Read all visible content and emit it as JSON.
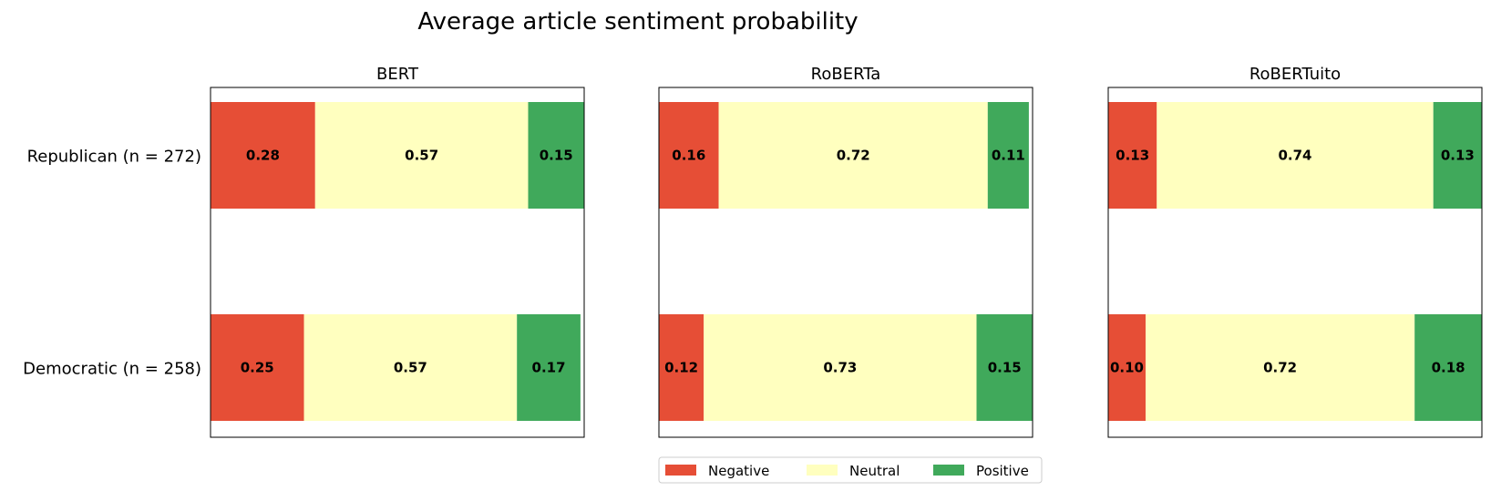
{
  "chart_data": {
    "type": "bar",
    "orientation": "horizontal-stacked",
    "title": "Average article sentiment probability",
    "categories": [
      "Republican (n = 272)",
      "Democratic (n = 258)"
    ],
    "xlim": [
      0,
      1
    ],
    "grid": false,
    "legend": {
      "placement": "bottom-center",
      "entries": [
        {
          "name": "Negative",
          "color": "#e64e36"
        },
        {
          "name": "Neutral",
          "color": "#ffffbf"
        },
        {
          "name": "Positive",
          "color": "#40a95b"
        }
      ]
    },
    "panels": [
      {
        "name": "BERT",
        "series": [
          {
            "name": "Negative",
            "values": [
              0.28,
              0.25
            ]
          },
          {
            "name": "Neutral",
            "values": [
              0.57,
              0.57
            ]
          },
          {
            "name": "Positive",
            "values": [
              0.15,
              0.17
            ]
          }
        ]
      },
      {
        "name": "RoBERTa",
        "series": [
          {
            "name": "Negative",
            "values": [
              0.16,
              0.12
            ]
          },
          {
            "name": "Neutral",
            "values": [
              0.72,
              0.73
            ]
          },
          {
            "name": "Positive",
            "values": [
              0.11,
              0.15
            ]
          }
        ]
      },
      {
        "name": "RoBERTuito",
        "series": [
          {
            "name": "Negative",
            "values": [
              0.13,
              0.1
            ]
          },
          {
            "name": "Neutral",
            "values": [
              0.74,
              0.72
            ]
          },
          {
            "name": "Positive",
            "values": [
              0.13,
              0.18
            ]
          }
        ]
      }
    ]
  }
}
